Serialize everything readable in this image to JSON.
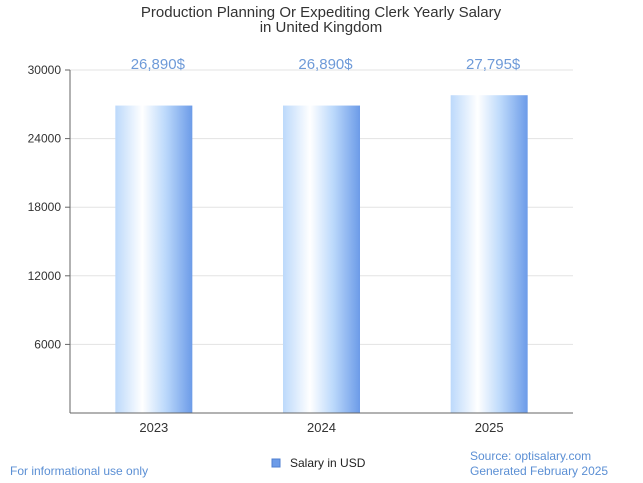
{
  "chart_data": {
    "type": "bar",
    "title": [
      "Production Planning Or Expediting Clerk Yearly Salary",
      "in United Kingdom"
    ],
    "categories": [
      "2023",
      "2024",
      "2025"
    ],
    "series": [
      {
        "name": "Salary in USD",
        "values": [
          26890,
          26890,
          27795
        ]
      }
    ],
    "data_labels": [
      "26,890$",
      "26,890$",
      "27,795$"
    ],
    "y_ticks": [
      "6000",
      "12000",
      "18000",
      "24000",
      "30000"
    ],
    "ylim": [
      0,
      30000
    ],
    "xlabel": "",
    "ylabel": "",
    "grid": true,
    "legend": "bottom-center"
  },
  "footer": {
    "disclaimer": "For informational use only",
    "source": "Source: optisalary.com",
    "generated": "Generated February 2025"
  },
  "colors": {
    "bar_light": "#ffffff",
    "bar_mid": "#bcd9fb",
    "bar_dark": "#6c9be8",
    "label": "#6e9ad8",
    "legend_swatch": "#6c9be8"
  }
}
